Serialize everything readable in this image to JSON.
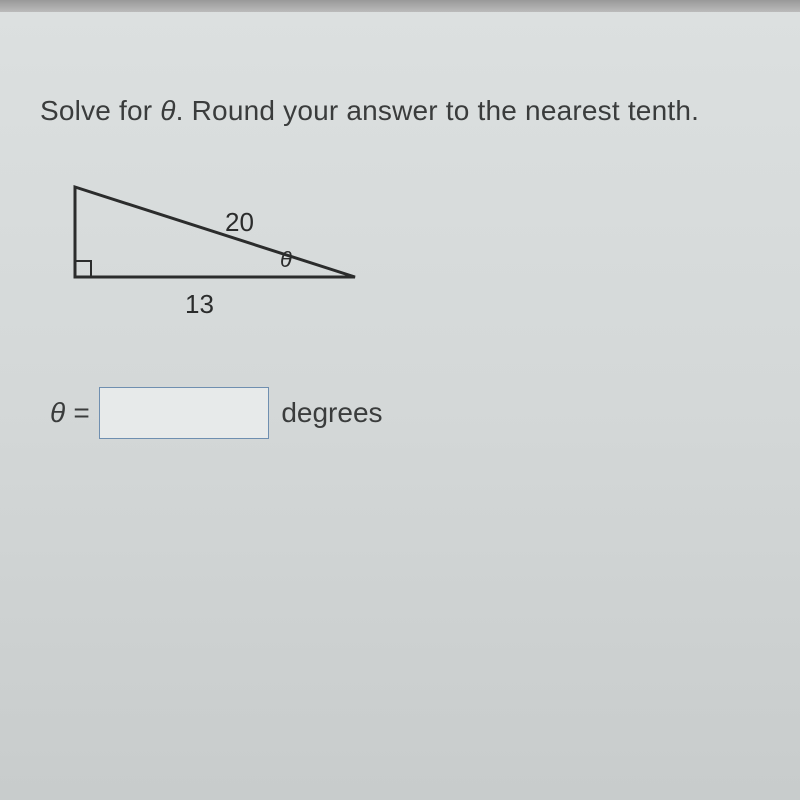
{
  "question": {
    "prefix": "Solve for ",
    "variable": "θ",
    "suffix": ". Round your answer to the nearest tenth."
  },
  "triangle": {
    "hypotenuse_label": "20",
    "base_label": "13",
    "angle_label": "θ",
    "vertices": {
      "A": [
        20,
        10
      ],
      "B": [
        20,
        100
      ],
      "C": [
        300,
        100
      ]
    },
    "right_angle_size": 16,
    "stroke_color": "#2b2c2c",
    "stroke_width": 3,
    "label_positions": {
      "hypotenuse": [
        170,
        30
      ],
      "base": [
        130,
        112
      ],
      "angle": [
        225,
        70
      ]
    },
    "label_fontsize": 26
  },
  "answer": {
    "lhs": "θ =",
    "value": "",
    "units": "degrees"
  },
  "style": {
    "text_color": "#3a3c3c",
    "input_border": "#6f8fb0",
    "background_top": "#dce0e0",
    "background_bottom": "#c8cccc"
  }
}
